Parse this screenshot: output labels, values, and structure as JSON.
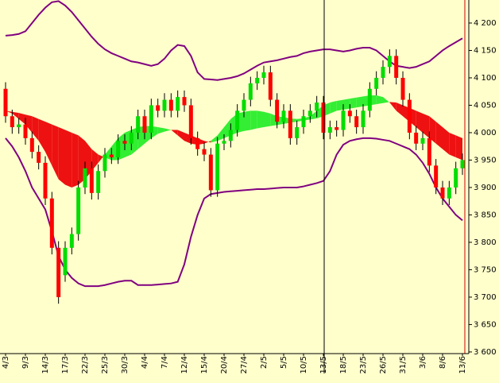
{
  "chart_data": {
    "type": "candlestick",
    "categories": [
      "4/3",
      null,
      null,
      "9/3",
      null,
      null,
      "14/3",
      null,
      null,
      "17/3",
      null,
      null,
      "22/3",
      null,
      null,
      "25/3",
      null,
      null,
      "30/3",
      null,
      null,
      "4/4",
      null,
      null,
      "7/4",
      null,
      null,
      "12/4",
      null,
      null,
      "15/4",
      null,
      null,
      "20/4",
      null,
      null,
      "27/4",
      null,
      null,
      "2/5",
      null,
      null,
      "5/5",
      null,
      null,
      "10/5",
      null,
      null,
      "13/5",
      null,
      null,
      "18/5",
      null,
      null,
      "23/5",
      null,
      null,
      "26/5",
      null,
      null,
      "31/5",
      null,
      null,
      "3/6",
      null,
      null,
      "8/6",
      null,
      null,
      "13/6"
    ],
    "open": [
      4080,
      4030,
      4010,
      4015,
      3990,
      3965,
      3945,
      3880,
      3790,
      3740,
      3790,
      3815,
      3900,
      3935,
      3890,
      3930,
      3960,
      3955,
      3985,
      3980,
      4000,
      4030,
      4000,
      4050,
      4040,
      4060,
      4040,
      4065,
      4050,
      3990,
      3970,
      3960,
      3895,
      3980,
      3985,
      4005,
      4040,
      4060,
      4090,
      4100,
      4110,
      4060,
      4020,
      4040,
      3990,
      4010,
      4030,
      4040,
      4055,
      4000,
      4010,
      4005,
      4040,
      4030,
      4010,
      4040,
      4080,
      4100,
      4120,
      4140,
      4100,
      4060,
      4000,
      3980,
      3990,
      3940,
      3900,
      3880,
      3900,
      3935
    ],
    "high": [
      4092,
      4042,
      4027,
      4027,
      4002,
      3977,
      3957,
      3892,
      3802,
      3802,
      3827,
      3912,
      3947,
      3947,
      3942,
      3972,
      3972,
      3997,
      3997,
      4012,
      4042,
      4042,
      4062,
      4062,
      4072,
      4072,
      4077,
      4077,
      4062,
      4002,
      3982,
      3972,
      3992,
      3997,
      4017,
      4052,
      4072,
      4102,
      4112,
      4122,
      4122,
      4072,
      4052,
      4052,
      4022,
      4042,
      4052,
      4067,
      4067,
      4022,
      4022,
      4052,
      4052,
      4042,
      4052,
      4092,
      4112,
      4132,
      4152,
      4152,
      4112,
      4072,
      4012,
      4002,
      4002,
      3952,
      3912,
      3912,
      3947,
      3962
    ],
    "low": [
      4018,
      3998,
      3998,
      3978,
      3953,
      3933,
      3868,
      3778,
      3688,
      3728,
      3778,
      3803,
      3888,
      3878,
      3878,
      3918,
      3943,
      3943,
      3968,
      3968,
      3988,
      3988,
      3988,
      4028,
      4028,
      4028,
      4028,
      4038,
      3978,
      3958,
      3948,
      3883,
      3883,
      3968,
      3973,
      3993,
      4028,
      4048,
      4078,
      4088,
      4048,
      4008,
      4008,
      3978,
      3978,
      3998,
      4018,
      4028,
      3988,
      3988,
      3993,
      3993,
      4018,
      3998,
      3998,
      4028,
      4068,
      4088,
      4108,
      4088,
      4048,
      3988,
      3968,
      3968,
      3928,
      3888,
      3868,
      3868,
      3888,
      3923
    ],
    "close": [
      4030,
      4010,
      4015,
      3990,
      3965,
      3945,
      3880,
      3790,
      3700,
      3790,
      3815,
      3900,
      3935,
      3890,
      3930,
      3960,
      3955,
      3985,
      3980,
      4000,
      4030,
      4000,
      4050,
      4040,
      4060,
      4040,
      4065,
      4050,
      3990,
      3970,
      3960,
      3895,
      3980,
      3985,
      4005,
      4040,
      4060,
      4090,
      4100,
      4110,
      4060,
      4020,
      4040,
      3990,
      4010,
      4030,
      4040,
      4055,
      4000,
      4010,
      4005,
      4040,
      4030,
      4010,
      4040,
      4080,
      4100,
      4120,
      4140,
      4100,
      4060,
      4000,
      3980,
      3990,
      3940,
      3900,
      3880,
      3900,
      3935,
      3950
    ],
    "up_color": "#00dd00",
    "down_color": "#ff0000",
    "bands": [
      {
        "color": "#800080",
        "values": [
          4177,
          4178,
          4180,
          4185,
          4200,
          4215,
          4228,
          4238,
          4240,
          4232,
          4220,
          4205,
          4190,
          4175,
          4162,
          4152,
          4145,
          4140,
          4135,
          4130,
          4128,
          4125,
          4122,
          4125,
          4135,
          4150,
          4160,
          4158,
          4140,
          4110,
          4098,
          4097,
          4096,
          4098,
          4100,
          4103,
          4108,
          4115,
          4122,
          4128,
          4130,
          4132,
          4135,
          4138,
          4140,
          4145,
          4148,
          4150,
          4152,
          4152,
          4150,
          4148,
          4150,
          4153,
          4155,
          4155,
          4150,
          4140,
          4130,
          4122,
          4120,
          4118,
          4120,
          4125,
          4130,
          4140,
          4150,
          4158,
          4165,
          4172
        ]
      },
      {
        "color": "#800080",
        "values": [
          3990,
          3975,
          3955,
          3930,
          3900,
          3880,
          3860,
          3820,
          3775,
          3750,
          3735,
          3725,
          3720,
          3720,
          3720,
          3722,
          3725,
          3728,
          3730,
          3730,
          3722,
          3722,
          3722,
          3723,
          3724,
          3725,
          3728,
          3760,
          3810,
          3850,
          3880,
          3888,
          3890,
          3892,
          3893,
          3894,
          3895,
          3896,
          3897,
          3897,
          3898,
          3899,
          3900,
          3900,
          3900,
          3902,
          3905,
          3908,
          3912,
          3930,
          3960,
          3978,
          3985,
          3988,
          3990,
          3990,
          3989,
          3987,
          3985,
          3980,
          3975,
          3970,
          3960,
          3945,
          3925,
          3900,
          3880,
          3865,
          3850,
          3840
        ]
      }
    ],
    "cloud": {
      "up_color": "#33ee33",
      "down_color": "#ee1111",
      "fast": [
        4040,
        4035,
        4025,
        4015,
        4000,
        3985,
        3965,
        3940,
        3915,
        3905,
        3900,
        3905,
        3915,
        3930,
        3945,
        3960,
        3975,
        3990,
        4000,
        4005,
        4010,
        4012,
        4012,
        4010,
        4008,
        4005,
        3995,
        3985,
        3980,
        3978,
        3980,
        3985,
        3995,
        4010,
        4025,
        4035,
        4038,
        4040,
        4040,
        4038,
        4035,
        4030,
        4028,
        4026,
        4025,
        4026,
        4030,
        4040,
        4050,
        4055,
        4058,
        4060,
        4062,
        4064,
        4066,
        4068,
        4068,
        4065,
        4055,
        4040,
        4030,
        4020,
        4010,
        4000,
        3990,
        3980,
        3970,
        3960,
        3955,
        3950
      ],
      "slow": [
        4040,
        4038,
        4036,
        4033,
        4030,
        4025,
        4020,
        4015,
        4010,
        4005,
        4000,
        3995,
        3985,
        3970,
        3960,
        3955,
        3950,
        3950,
        3955,
        3960,
        3970,
        3980,
        3990,
        3998,
        4002,
        4005,
        4005,
        4000,
        3995,
        3990,
        3985,
        3982,
        3985,
        3990,
        3995,
        4000,
        4003,
        4005,
        4008,
        4010,
        4012,
        4014,
        4016,
        4018,
        4020,
        4022,
        4024,
        4026,
        4030,
        4035,
        4040,
        4042,
        4044,
        4046,
        4048,
        4050,
        4052,
        4054,
        4056,
        4055,
        4050,
        4045,
        4040,
        4035,
        4030,
        4020,
        4010,
        4000,
        3995,
        3990
      ]
    },
    "ylim": [
      3597,
      4242
    ],
    "yticks": [
      {
        "value": 3600,
        "label": "3 600"
      },
      {
        "value": 3650,
        "label": "3 650"
      },
      {
        "value": 3700,
        "label": "3 700"
      },
      {
        "value": 3750,
        "label": "3 750"
      },
      {
        "value": 3800,
        "label": "3 800"
      },
      {
        "value": 3850,
        "label": "3 850"
      },
      {
        "value": 3900,
        "label": "3 900"
      },
      {
        "value": 3950,
        "label": "3 950"
      },
      {
        "value": 4000,
        "label": "4 000"
      },
      {
        "value": 4050,
        "label": "4 050"
      },
      {
        "value": 4100,
        "label": "4 100"
      },
      {
        "value": 4150,
        "label": "4 150"
      },
      {
        "value": 4200,
        "label": "4 200"
      }
    ]
  }
}
